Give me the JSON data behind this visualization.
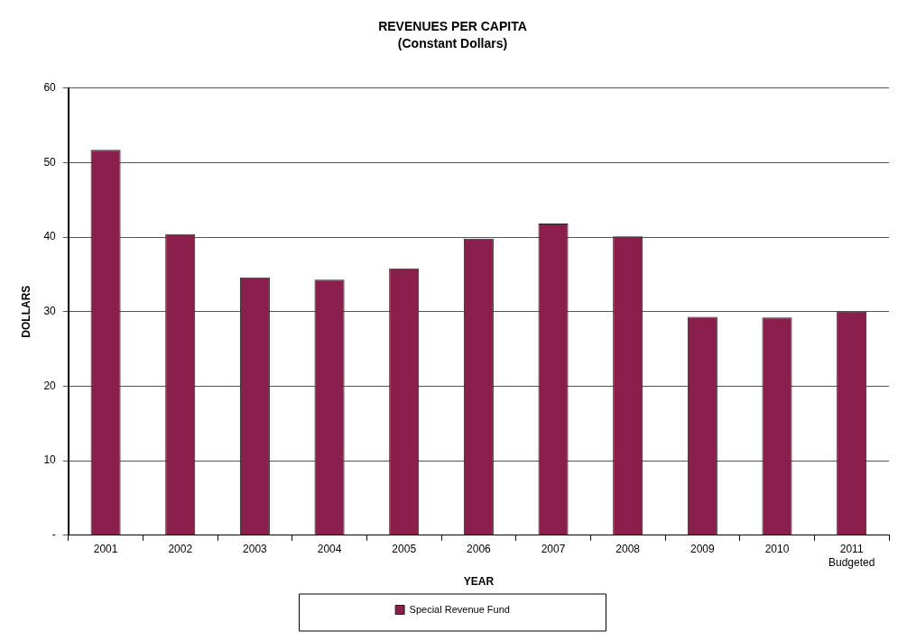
{
  "chart_data": {
    "type": "bar",
    "title": "REVENUES PER CAPITA",
    "subtitle": "(Constant Dollars)",
    "xlabel": "YEAR",
    "ylabel": "DOLLARS",
    "categories": [
      "2001",
      "2002",
      "2003",
      "2004",
      "2005",
      "2006",
      "2007",
      "2008",
      "2009",
      "2010",
      "2011\nBudgeted"
    ],
    "series": [
      {
        "name": "Special Revenue Fund",
        "color": "#8b1f4c",
        "values": [
          51.7,
          40.4,
          34.6,
          34.3,
          35.8,
          39.8,
          41.8,
          40.1,
          29.3,
          29.2,
          30.0
        ]
      }
    ],
    "ylim": [
      0,
      60
    ],
    "yticks": [
      {
        "value": 0,
        "label": "-"
      },
      10,
      20,
      30,
      40,
      50,
      60
    ],
    "grid": "y",
    "legend": "bottom"
  }
}
